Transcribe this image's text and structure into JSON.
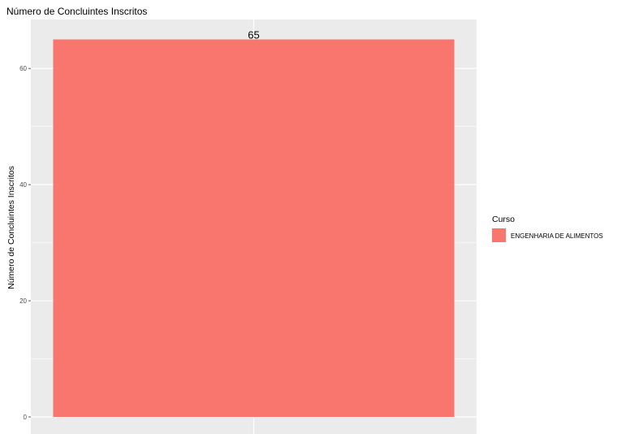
{
  "chart_data": {
    "type": "bar",
    "title": "Número de Concluintes Inscritos",
    "ylabel": "Número de Concluintes Inscritos",
    "xlabel": "",
    "categories": [
      "ENGENHARIA DE ALIMENTOS"
    ],
    "series": [
      {
        "name": "ENGENHARIA DE ALIMENTOS",
        "values": [
          65
        ],
        "color": "#F8766D"
      }
    ],
    "data_labels": [
      "65"
    ],
    "ylim": [
      0,
      68.25
    ],
    "yticks": [
      0,
      20,
      40,
      60
    ],
    "grid": true,
    "panel_background": "#EBEBEB",
    "gridline_color": "#FFFFFF",
    "legend": {
      "title": "Curso",
      "placement": "right",
      "entries": [
        {
          "label": "ENGENHARIA DE ALIMENTOS",
          "color": "#F8766D"
        }
      ]
    }
  }
}
